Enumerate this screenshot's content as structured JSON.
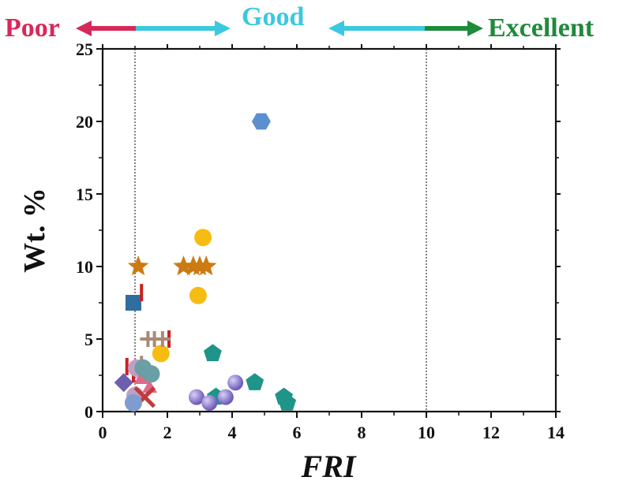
{
  "chart_data": {
    "type": "scatter",
    "title": "",
    "xlabel": "FRI",
    "ylabel": "Wt. %",
    "xlim": [
      0,
      14
    ],
    "ylim": [
      0,
      25
    ],
    "xticks": [
      "0",
      "2",
      "4",
      "6",
      "8",
      "10",
      "12",
      "14"
    ],
    "yticks": [
      "0",
      "5",
      "10",
      "15",
      "20",
      "25"
    ],
    "reference_lines_x": [
      1,
      10
    ],
    "grid": false,
    "legend": "none",
    "ranges": [
      {
        "label": "Poor",
        "color": "#d8285a"
      },
      {
        "label": "Good",
        "color": "#3cc8e0"
      },
      {
        "label": "Excellent",
        "color": "#1f8a3c"
      }
    ],
    "series": [
      {
        "marker": "hexagon",
        "color": "#5b8fd0",
        "points": [
          [
            4.9,
            20
          ]
        ]
      },
      {
        "marker": "circle",
        "color": "#f7bc12",
        "points": [
          [
            3.1,
            12
          ],
          [
            2.95,
            8
          ],
          [
            1.8,
            4
          ]
        ]
      },
      {
        "marker": "star",
        "color": "#cc7a12",
        "points": [
          [
            1.1,
            10
          ],
          [
            2.5,
            10
          ],
          [
            2.8,
            10
          ],
          [
            3.0,
            10
          ],
          [
            3.2,
            10
          ]
        ]
      },
      {
        "marker": "square",
        "color": "#2f6e9e",
        "points": [
          [
            0.95,
            7.5
          ]
        ]
      },
      {
        "marker": "vbar",
        "color": "#cc1f1f",
        "points": [
          [
            1.2,
            8.2
          ],
          [
            2.05,
            5
          ],
          [
            0.75,
            3.1
          ],
          [
            0.95,
            2.6
          ]
        ]
      },
      {
        "marker": "plus",
        "color": "#a88a78",
        "points": [
          [
            1.4,
            5
          ],
          [
            1.6,
            5
          ],
          [
            1.85,
            5
          ],
          [
            1.2,
            3.3
          ]
        ]
      },
      {
        "marker": "pentagon",
        "color": "#1f9488",
        "points": [
          [
            3.4,
            4
          ],
          [
            4.7,
            2
          ],
          [
            3.5,
            1
          ],
          [
            5.6,
            1
          ],
          [
            5.7,
            0.6
          ]
        ]
      },
      {
        "marker": "sphere",
        "color": "#7d6ac8",
        "points": [
          [
            4.1,
            2
          ],
          [
            2.9,
            1
          ],
          [
            3.8,
            1
          ],
          [
            3.3,
            0.6
          ]
        ]
      },
      {
        "marker": "diamond",
        "color": "#6e5fae",
        "points": [
          [
            0.65,
            2
          ]
        ]
      },
      {
        "marker": "circle",
        "color": "#c09fc5",
        "points": [
          [
            1.05,
            3
          ],
          [
            1.3,
            2.5
          ],
          [
            1.0,
            1.1
          ]
        ]
      },
      {
        "marker": "triangle",
        "color": "#e06a88",
        "points": [
          [
            1.2,
            2.2
          ],
          [
            1.45,
            1.6
          ]
        ]
      },
      {
        "marker": "circle",
        "color": "#6a9fa5",
        "points": [
          [
            1.25,
            3.0
          ],
          [
            1.5,
            2.6
          ]
        ]
      },
      {
        "marker": "cross",
        "color": "#c23a3a",
        "points": [
          [
            1.3,
            1.0
          ]
        ]
      },
      {
        "marker": "circle",
        "color": "#7e9cd0",
        "points": [
          [
            0.95,
            0.6
          ]
        ]
      }
    ]
  }
}
